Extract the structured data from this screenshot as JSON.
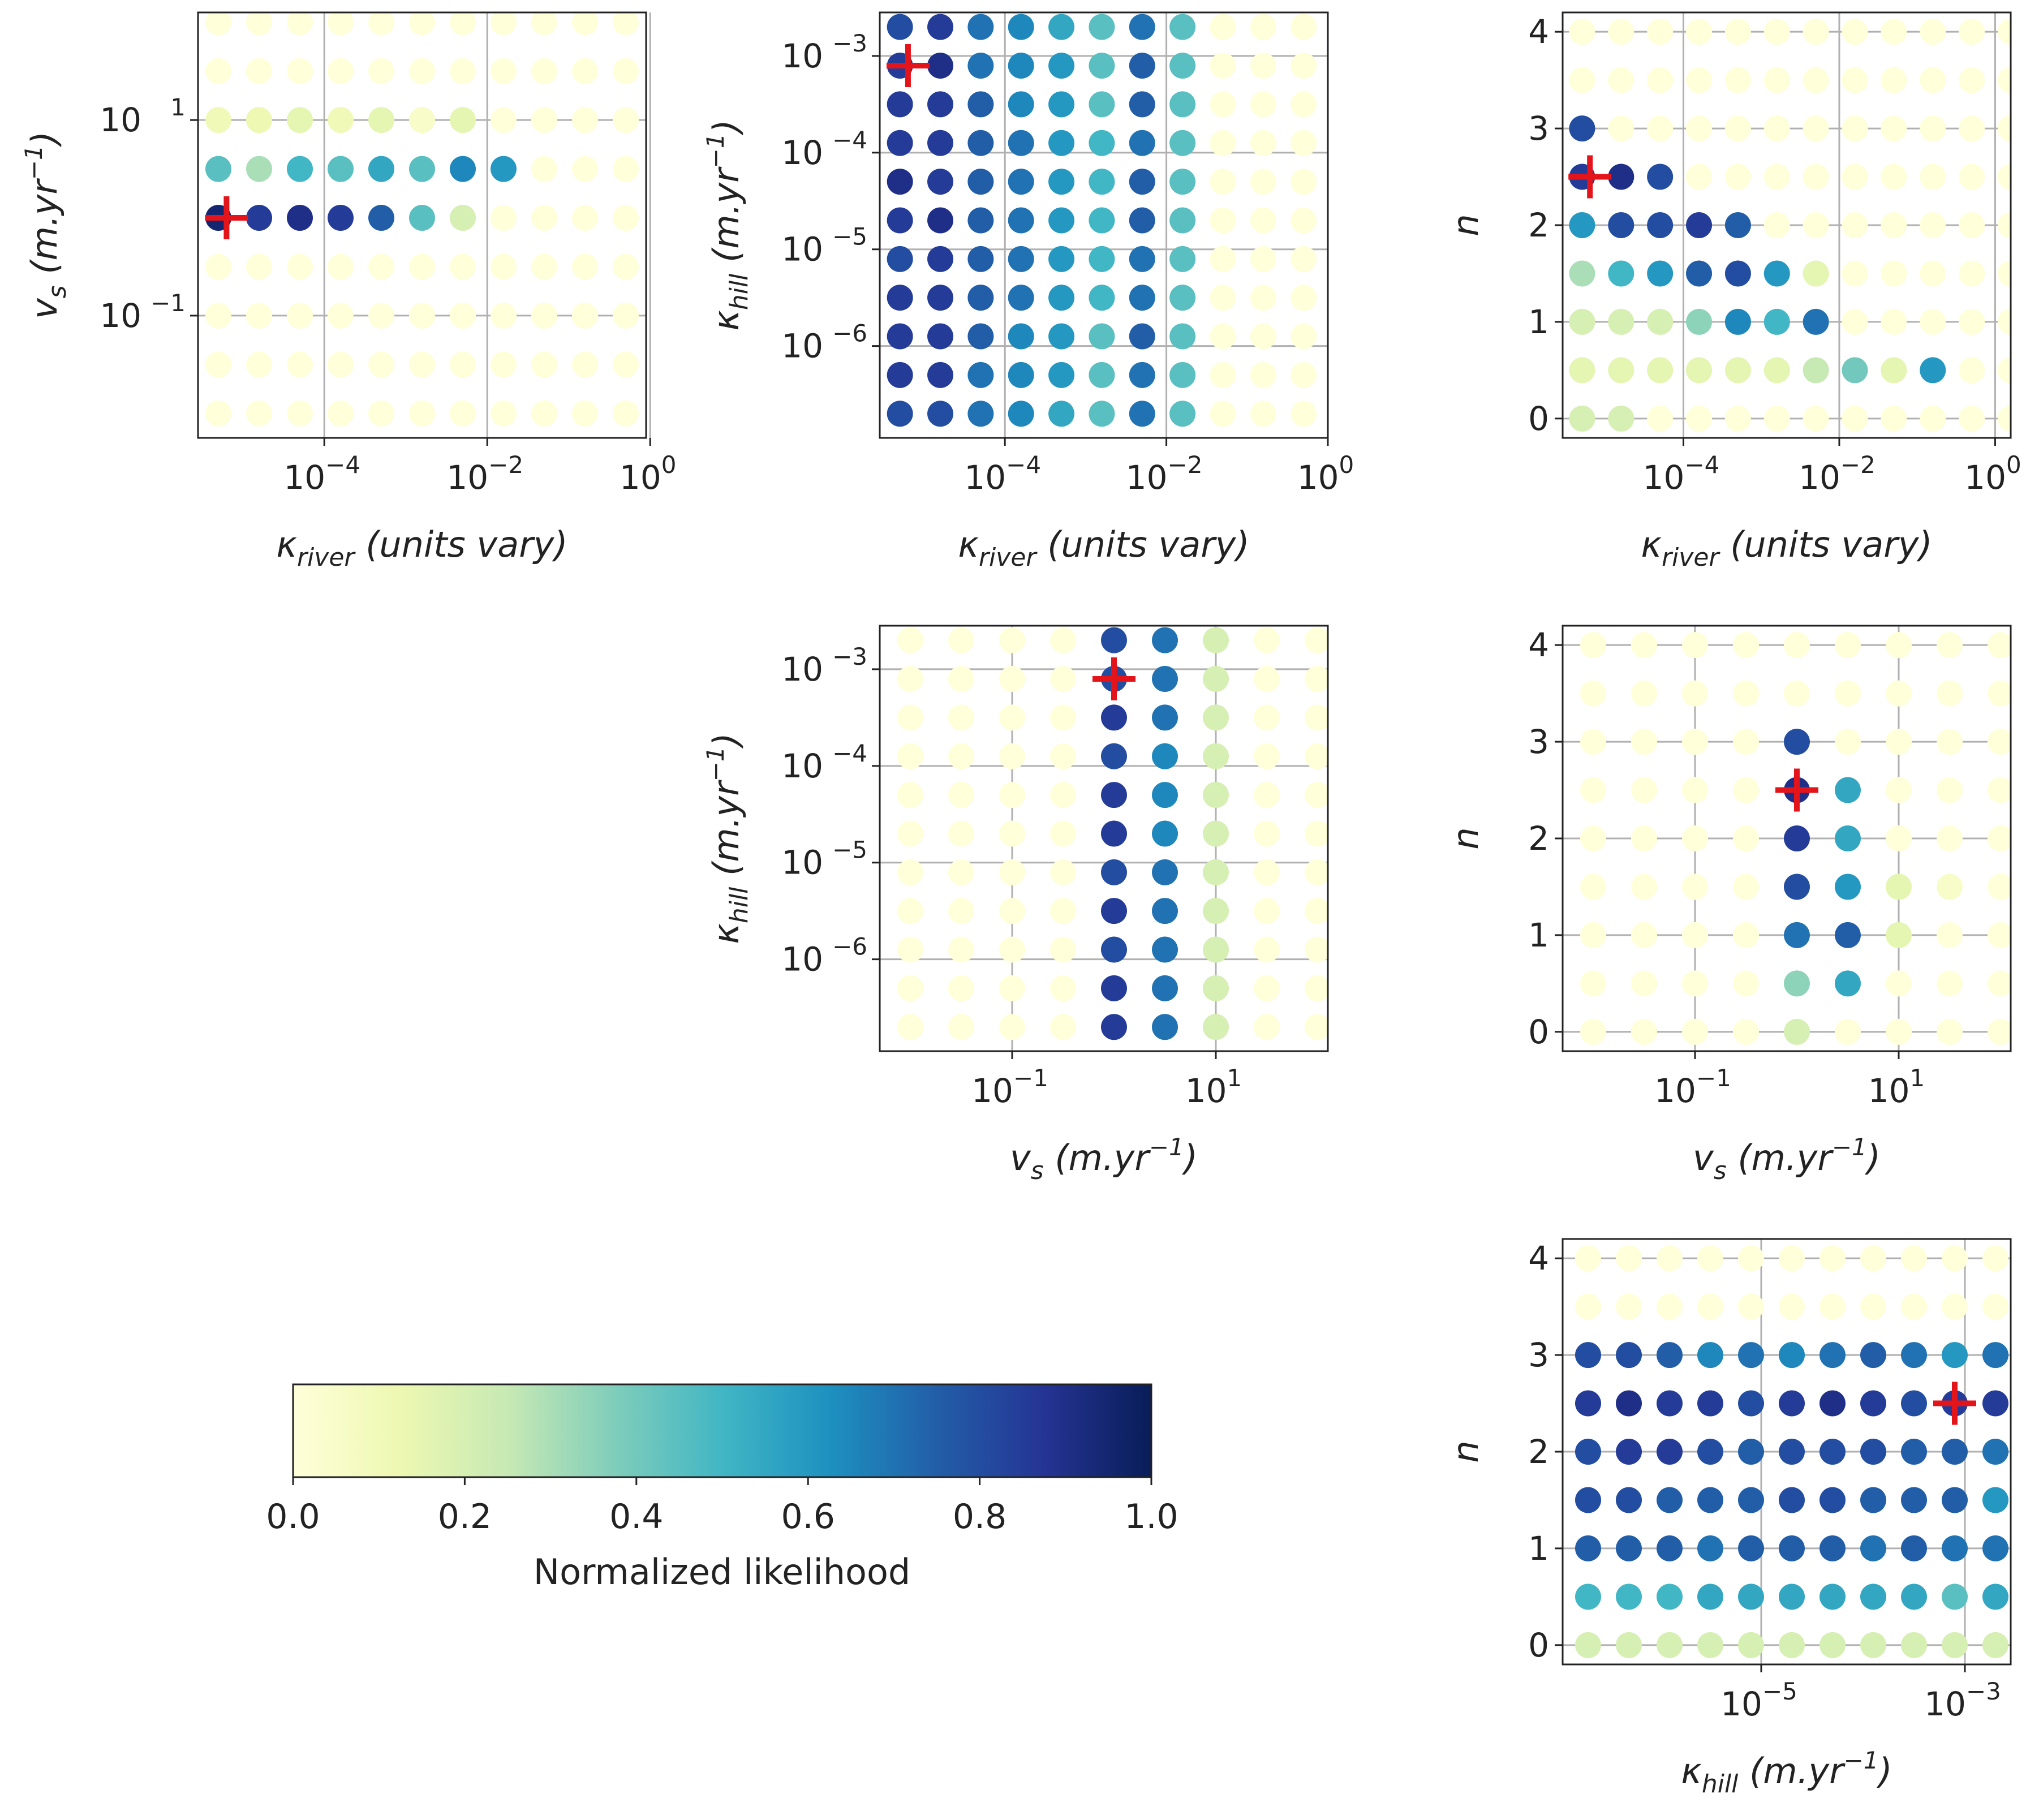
{
  "chart_data": {
    "type": "scatter",
    "title": "",
    "colormap": {
      "name": "YlGnBu",
      "stops": [
        "#ffffd9",
        "#edf8b1",
        "#c7e9b4",
        "#7fcdbb",
        "#41b6c4",
        "#1d91c0",
        "#225ea8",
        "#253494",
        "#081d58"
      ]
    },
    "colorbar": {
      "label": "Normalized likelihood",
      "range": [
        0,
        1
      ],
      "ticks": [
        "0.0",
        "0.2",
        "0.4",
        "0.6",
        "0.8",
        "1.0"
      ]
    },
    "parameters": {
      "k_river": {
        "label": "κriver (units vary)",
        "scale": "log",
        "grid_log10": [
          -5.3,
          -4.8,
          -4.3,
          -3.8,
          -3.3,
          -2.8,
          -2.3,
          -1.8,
          -1.3,
          -0.8,
          -0.3,
          0.2
        ]
      },
      "v_s": {
        "label": "vs (m.yr−1)",
        "scale": "log",
        "grid_log10": [
          -2.0,
          -1.5,
          -1.0,
          -0.5,
          0.0,
          0.5,
          1.0,
          1.5,
          2.0
        ]
      },
      "k_hill": {
        "label": "κhill (m.yr−1)",
        "scale": "log",
        "grid_log10": [
          -6.7,
          -6.3,
          -5.9,
          -5.5,
          -5.1,
          -4.7,
          -4.3,
          -3.9,
          -3.5,
          -3.1,
          -2.7
        ]
      },
      "n": {
        "label": "n",
        "scale": "linear",
        "grid": [
          0.0,
          0.5,
          1.0,
          1.5,
          2.0,
          2.5,
          3.0,
          3.5,
          4.0
        ]
      }
    },
    "best_fit": {
      "k_river_log10": -5.2,
      "v_s_log10": 0.0,
      "k_hill_log10": -3.1,
      "n": 2.5
    },
    "panels": [
      {
        "id": "kriver-vs",
        "x_param": "k_river",
        "y_param": "v_s",
        "xlabel": "κriver (units vary)",
        "ylabel": "vs (m.yr−1)",
        "xlim_log10": [
          -5.55,
          -0.05
        ],
        "ylim_log10": [
          -2.25,
          2.1
        ],
        "x_ticks": [
          {
            "base": "10",
            "exp": "−4",
            "value": -4
          },
          {
            "base": "10",
            "exp": "−2",
            "value": -2
          },
          {
            "base": "10",
            "exp": "0",
            "value": 0
          }
        ],
        "y_ticks": [
          {
            "base": "10",
            "exp": "−1",
            "value": -1
          },
          {
            "base": "10",
            "exp": "1",
            "value": 1
          }
        ],
        "grid": true,
        "best": [
          -5.2,
          0.0
        ],
        "likelihood": [
          [
            0,
            0,
            0,
            0,
            0,
            0,
            0,
            0,
            0,
            0,
            0,
            0
          ],
          [
            0,
            0,
            0,
            0,
            0,
            0,
            0,
            0,
            0,
            0,
            0,
            0
          ],
          [
            0,
            0,
            0,
            0,
            0,
            0,
            0,
            0,
            0,
            0,
            0,
            0
          ],
          [
            0,
            0,
            0,
            0,
            0,
            0,
            0,
            0,
            0,
            0,
            0,
            0
          ],
          [
            0.95,
            0.85,
            0.9,
            0.85,
            0.75,
            0.45,
            0.2,
            0,
            0,
            0,
            0,
            0
          ],
          [
            0.45,
            0.3,
            0.5,
            0.45,
            0.55,
            0.45,
            0.65,
            0.6,
            0,
            0,
            0,
            0
          ],
          [
            0.1,
            0.12,
            0.15,
            0.1,
            0.15,
            0.05,
            0.15,
            0,
            0,
            0,
            0,
            0
          ],
          [
            0,
            0,
            0,
            0,
            0,
            0,
            0,
            0,
            0,
            0,
            0,
            0
          ],
          [
            0,
            0,
            0,
            0,
            0,
            0,
            0,
            0,
            0,
            0,
            0,
            0
          ]
        ]
      },
      {
        "id": "kriver-khill",
        "x_param": "k_river",
        "y_param": "k_hill",
        "xlabel": "κriver (units vary)",
        "ylabel": "κhill (m.yr−1)",
        "xlim_log10": [
          -5.55,
          0.0
        ],
        "ylim_log10": [
          -6.95,
          -2.55
        ],
        "x_ticks": [
          {
            "base": "10",
            "exp": "−4",
            "value": -4
          },
          {
            "base": "10",
            "exp": "−2",
            "value": -2
          },
          {
            "base": "10",
            "exp": "0",
            "value": 0
          }
        ],
        "y_ticks": [
          {
            "base": "10",
            "exp": "−6",
            "value": -6
          },
          {
            "base": "10",
            "exp": "−5",
            "value": -5
          },
          {
            "base": "10",
            "exp": "−4",
            "value": -4
          },
          {
            "base": "10",
            "exp": "−3",
            "value": -3
          }
        ],
        "grid": true,
        "best": [
          -5.2,
          -3.1
        ],
        "likelihood": [
          [
            0.8,
            0.8,
            0.7,
            0.65,
            0.55,
            0.45,
            0.7,
            0.45,
            0,
            0,
            0,
            0
          ],
          [
            0.85,
            0.85,
            0.7,
            0.65,
            0.6,
            0.45,
            0.7,
            0.45,
            0,
            0,
            0,
            0
          ],
          [
            0.85,
            0.85,
            0.75,
            0.65,
            0.6,
            0.45,
            0.75,
            0.45,
            0,
            0,
            0,
            0
          ],
          [
            0.85,
            0.85,
            0.75,
            0.7,
            0.6,
            0.5,
            0.7,
            0.45,
            0,
            0,
            0,
            0
          ],
          [
            0.8,
            0.85,
            0.75,
            0.7,
            0.6,
            0.5,
            0.7,
            0.45,
            0,
            0,
            0,
            0
          ],
          [
            0.85,
            0.9,
            0.75,
            0.7,
            0.6,
            0.5,
            0.75,
            0.45,
            0,
            0,
            0,
            0
          ],
          [
            0.9,
            0.85,
            0.75,
            0.7,
            0.6,
            0.5,
            0.75,
            0.45,
            0,
            0,
            0,
            0
          ],
          [
            0.85,
            0.85,
            0.75,
            0.7,
            0.6,
            0.5,
            0.7,
            0.45,
            0,
            0,
            0,
            0
          ],
          [
            0.85,
            0.85,
            0.75,
            0.65,
            0.6,
            0.45,
            0.75,
            0.45,
            0,
            0,
            0,
            0
          ],
          [
            0.85,
            0.9,
            0.7,
            0.65,
            0.6,
            0.45,
            0.75,
            0.45,
            0,
            0,
            0,
            0
          ],
          [
            0.8,
            0.85,
            0.7,
            0.65,
            0.55,
            0.45,
            0.7,
            0.45,
            0,
            0,
            0,
            0
          ]
        ]
      },
      {
        "id": "kriver-n",
        "x_param": "k_river",
        "y_param": "n",
        "xlabel": "κriver (units vary)",
        "ylabel": "n",
        "xlim": [
          -5.55,
          0.2
        ],
        "ylim": [
          -0.2,
          4.2
        ],
        "x_ticks": [
          {
            "base": "10",
            "exp": "−4",
            "value": -4
          },
          {
            "base": "10",
            "exp": "−2",
            "value": -2
          },
          {
            "base": "10",
            "exp": "0",
            "value": 0
          }
        ],
        "y_ticks": [
          {
            "label": "0",
            "value": 0
          },
          {
            "label": "1",
            "value": 1
          },
          {
            "label": "2",
            "value": 2
          },
          {
            "label": "3",
            "value": 3
          },
          {
            "label": "4",
            "value": 4
          }
        ],
        "grid": true,
        "best": [
          -5.2,
          2.5
        ],
        "likelihood": [
          [
            0.2,
            0.2,
            0,
            0,
            0,
            0,
            0,
            0,
            0,
            0,
            0,
            0
          ],
          [
            0.15,
            0.15,
            0.15,
            0.15,
            0.15,
            0.15,
            0.25,
            0.4,
            0.15,
            0.6,
            0,
            0
          ],
          [
            0.2,
            0.2,
            0.2,
            0.35,
            0.65,
            0.5,
            0.7,
            0,
            0,
            0,
            0,
            0
          ],
          [
            0.3,
            0.5,
            0.6,
            0.75,
            0.8,
            0.6,
            0.15,
            0,
            0,
            0,
            0,
            0
          ],
          [
            0.6,
            0.8,
            0.8,
            0.85,
            0.75,
            0,
            0,
            0,
            0,
            0,
            0,
            0
          ],
          [
            0.85,
            0.9,
            0.8,
            0,
            0,
            0,
            0,
            0,
            0,
            0,
            0,
            0
          ],
          [
            0.8,
            0,
            0,
            0,
            0,
            0,
            0,
            0,
            0,
            0,
            0,
            0
          ],
          [
            0,
            0,
            0,
            0,
            0,
            0,
            0,
            0,
            0,
            0,
            0,
            0
          ],
          [
            0,
            0,
            0,
            0,
            0,
            0,
            0,
            0,
            0,
            0,
            0,
            0
          ]
        ]
      },
      {
        "id": "vs-khill",
        "x_param": "v_s",
        "y_param": "k_hill",
        "xlabel": "vs (m.yr−1)",
        "ylabel": "κhill (m.yr−1)",
        "xlim_log10": [
          -2.3,
          2.1
        ],
        "ylim_log10": [
          -6.95,
          -2.55
        ],
        "x_ticks": [
          {
            "base": "10",
            "exp": "−1",
            "value": -1
          },
          {
            "base": "10",
            "exp": "1",
            "value": 1
          }
        ],
        "y_ticks": [
          {
            "base": "10",
            "exp": "−6",
            "value": -6
          },
          {
            "base": "10",
            "exp": "−5",
            "value": -5
          },
          {
            "base": "10",
            "exp": "−4",
            "value": -4
          },
          {
            "base": "10",
            "exp": "−3",
            "value": -3
          }
        ],
        "grid": true,
        "best": [
          0.0,
          -3.1
        ],
        "likelihood": [
          [
            0,
            0,
            0,
            0,
            0.85,
            0.7,
            0.2,
            0,
            0
          ],
          [
            0,
            0,
            0,
            0,
            0.85,
            0.7,
            0.2,
            0,
            0
          ],
          [
            0,
            0,
            0,
            0,
            0.8,
            0.7,
            0.2,
            0,
            0
          ],
          [
            0,
            0,
            0,
            0,
            0.85,
            0.7,
            0.2,
            0,
            0
          ],
          [
            0,
            0,
            0,
            0,
            0.8,
            0.7,
            0.2,
            0,
            0
          ],
          [
            0,
            0,
            0,
            0,
            0.85,
            0.65,
            0.2,
            0,
            0
          ],
          [
            0,
            0,
            0,
            0,
            0.85,
            0.65,
            0.2,
            0,
            0
          ],
          [
            0,
            0,
            0,
            0,
            0.8,
            0.65,
            0.2,
            0,
            0
          ],
          [
            0,
            0,
            0,
            0,
            0.85,
            0.7,
            0.2,
            0,
            0
          ],
          [
            0,
            0,
            0,
            0,
            0.8,
            0.7,
            0.2,
            0,
            0
          ],
          [
            0,
            0,
            0,
            0,
            0.8,
            0.7,
            0.2,
            0,
            0
          ]
        ]
      },
      {
        "id": "vs-n",
        "x_param": "v_s",
        "y_param": "n",
        "xlabel": "vs (m.yr−1)",
        "ylabel": "n",
        "xlim_log10": [
          -2.3,
          2.1
        ],
        "ylim": [
          -0.2,
          4.2
        ],
        "x_ticks": [
          {
            "base": "10",
            "exp": "−1",
            "value": -1
          },
          {
            "base": "10",
            "exp": "1",
            "value": 1
          }
        ],
        "y_ticks": [
          {
            "label": "0",
            "value": 0
          },
          {
            "label": "1",
            "value": 1
          },
          {
            "label": "2",
            "value": 2
          },
          {
            "label": "3",
            "value": 3
          },
          {
            "label": "4",
            "value": 4
          }
        ],
        "grid": true,
        "best": [
          0.0,
          2.5
        ],
        "likelihood": [
          [
            0,
            0,
            0,
            0,
            0.2,
            0,
            0,
            0,
            0
          ],
          [
            0,
            0,
            0,
            0,
            0.35,
            0.55,
            0,
            0,
            0
          ],
          [
            0,
            0,
            0,
            0,
            0.7,
            0.75,
            0.15,
            0,
            0
          ],
          [
            0,
            0,
            0,
            0,
            0.8,
            0.6,
            0.15,
            0.05,
            0
          ],
          [
            0,
            0,
            0,
            0,
            0.85,
            0.55,
            0,
            0,
            0
          ],
          [
            0,
            0,
            0,
            0,
            0.9,
            0.55,
            0,
            0,
            0
          ],
          [
            0,
            0,
            0,
            0,
            0.8,
            0,
            0,
            0,
            0
          ],
          [
            0,
            0,
            0,
            0,
            0,
            0,
            0,
            0,
            0
          ],
          [
            0,
            0,
            0,
            0,
            0,
            0,
            0,
            0,
            0
          ]
        ]
      },
      {
        "id": "khill-n",
        "x_param": "k_hill",
        "y_param": "n",
        "xlabel": "κhill (m.yr−1)",
        "ylabel": "n",
        "xlim_log10": [
          -6.95,
          -2.55
        ],
        "ylim": [
          -0.2,
          4.2
        ],
        "x_ticks": [
          {
            "base": "10",
            "exp": "−5",
            "value": -5
          },
          {
            "base": "10",
            "exp": "−3",
            "value": -3
          }
        ],
        "y_ticks": [
          {
            "label": "0",
            "value": 0
          },
          {
            "label": "1",
            "value": 1
          },
          {
            "label": "2",
            "value": 2
          },
          {
            "label": "3",
            "value": 3
          },
          {
            "label": "4",
            "value": 4
          }
        ],
        "grid": true,
        "best": [
          -3.1,
          2.5
        ],
        "likelihood": [
          [
            0.2,
            0.2,
            0.2,
            0.2,
            0.2,
            0.2,
            0.2,
            0.2,
            0.2,
            0.2,
            0.2
          ],
          [
            0.5,
            0.5,
            0.5,
            0.55,
            0.55,
            0.55,
            0.55,
            0.55,
            0.55,
            0.45,
            0.55
          ],
          [
            0.75,
            0.75,
            0.75,
            0.7,
            0.75,
            0.75,
            0.75,
            0.7,
            0.75,
            0.7,
            0.7
          ],
          [
            0.8,
            0.8,
            0.75,
            0.75,
            0.75,
            0.8,
            0.8,
            0.75,
            0.75,
            0.75,
            0.6
          ],
          [
            0.8,
            0.85,
            0.85,
            0.8,
            0.75,
            0.8,
            0.8,
            0.8,
            0.75,
            0.75,
            0.7
          ],
          [
            0.85,
            0.9,
            0.85,
            0.85,
            0.8,
            0.85,
            0.9,
            0.85,
            0.8,
            0.85,
            0.85
          ],
          [
            0.8,
            0.8,
            0.75,
            0.65,
            0.7,
            0.65,
            0.7,
            0.75,
            0.7,
            0.6,
            0.7
          ],
          [
            0,
            0,
            0,
            0,
            0,
            0,
            0,
            0,
            0,
            0,
            0
          ],
          [
            0,
            0,
            0,
            0,
            0,
            0,
            0,
            0,
            0,
            0,
            0
          ]
        ]
      }
    ]
  }
}
